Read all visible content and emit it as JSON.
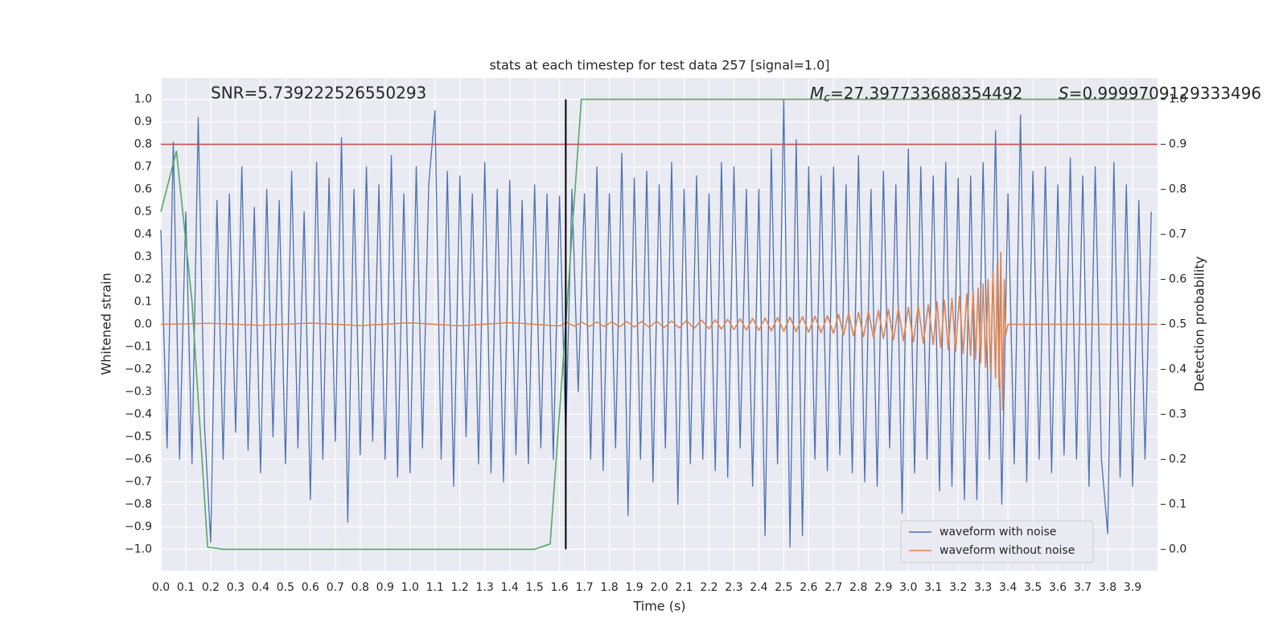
{
  "chart_data": {
    "type": "line",
    "title": "stats at each timestep for test data 257 [signal=1.0]",
    "xlabel": "Time (s)",
    "ylabel": "Whitened strain",
    "y2label": "Detection probability",
    "annotations": [
      {
        "text": "SNR=5.739222526550293"
      },
      {
        "symbol": "M",
        "subscript": "c",
        "text": "=27.397733688354492"
      },
      {
        "symbol": "S",
        "text": "=0.9999709129333496"
      }
    ],
    "xlim": [
      0,
      4.0
    ],
    "ylim": [
      -1.095,
      1.095
    ],
    "y2lim": [
      -0.0475,
      1.0475
    ],
    "grid": true,
    "legend": "lower right",
    "xticks": [
      {
        "value": 0,
        "label": "0.0"
      },
      {
        "value": 0.1,
        "label": "0.1"
      },
      {
        "value": 0.2,
        "label": "0.2"
      },
      {
        "value": 0.3,
        "label": "0.3"
      },
      {
        "value": 0.4,
        "label": "0.4"
      },
      {
        "value": 0.5,
        "label": "0.5"
      },
      {
        "value": 0.6,
        "label": "0.6"
      },
      {
        "value": 0.7,
        "label": "0.7"
      },
      {
        "value": 0.8,
        "label": "0.8"
      },
      {
        "value": 0.9,
        "label": "0.9"
      },
      {
        "value": 1,
        "label": "1.0"
      },
      {
        "value": 1.1,
        "label": "1.1"
      },
      {
        "value": 1.2,
        "label": "1.2"
      },
      {
        "value": 1.3,
        "label": "1.3"
      },
      {
        "value": 1.4,
        "label": "1.4"
      },
      {
        "value": 1.5,
        "label": "1.5"
      },
      {
        "value": 1.6,
        "label": "1.6"
      },
      {
        "value": 1.7,
        "label": "1.7"
      },
      {
        "value": 1.8,
        "label": "1.8"
      },
      {
        "value": 1.9,
        "label": "1.9"
      },
      {
        "value": 2,
        "label": "2.0"
      },
      {
        "value": 2.1,
        "label": "2.1"
      },
      {
        "value": 2.2,
        "label": "2.2"
      },
      {
        "value": 2.3,
        "label": "2.3"
      },
      {
        "value": 2.4,
        "label": "2.4"
      },
      {
        "value": 2.5,
        "label": "2.5"
      },
      {
        "value": 2.6,
        "label": "2.6"
      },
      {
        "value": 2.7,
        "label": "2.7"
      },
      {
        "value": 2.8,
        "label": "2.8"
      },
      {
        "value": 2.9,
        "label": "2.9"
      },
      {
        "value": 3,
        "label": "3.0"
      },
      {
        "value": 3.1,
        "label": "3.1"
      },
      {
        "value": 3.2,
        "label": "3.2"
      },
      {
        "value": 3.3,
        "label": "3.3"
      },
      {
        "value": 3.4,
        "label": "3.4"
      },
      {
        "value": 3.5,
        "label": "3.5"
      },
      {
        "value": 3.6,
        "label": "3.6"
      },
      {
        "value": 3.7,
        "label": "3.7"
      },
      {
        "value": 3.8,
        "label": "3.8"
      },
      {
        "value": 3.9,
        "label": "3.9"
      }
    ],
    "yticks": [
      {
        "value": -1,
        "label": "−1.0"
      },
      {
        "value": -0.9,
        "label": "−0.9"
      },
      {
        "value": -0.8,
        "label": "−0.8"
      },
      {
        "value": -0.7,
        "label": "−0.7"
      },
      {
        "value": -0.6,
        "label": "−0.6"
      },
      {
        "value": -0.5,
        "label": "−0.5"
      },
      {
        "value": -0.4,
        "label": "−0.4"
      },
      {
        "value": -0.3,
        "label": "−0.3"
      },
      {
        "value": -0.2,
        "label": "−0.2"
      },
      {
        "value": -0.1,
        "label": "−0.1"
      },
      {
        "value": 0,
        "label": "0.0"
      },
      {
        "value": 0.1,
        "label": "0.1"
      },
      {
        "value": 0.2,
        "label": "0.2"
      },
      {
        "value": 0.3,
        "label": "0.3"
      },
      {
        "value": 0.4,
        "label": "0.4"
      },
      {
        "value": 0.5,
        "label": "0.5"
      },
      {
        "value": 0.6,
        "label": "0.6"
      },
      {
        "value": 0.7,
        "label": "0.7"
      },
      {
        "value": 0.8,
        "label": "0.8"
      },
      {
        "value": 0.9,
        "label": "0.9"
      },
      {
        "value": 1,
        "label": "1.0"
      }
    ],
    "y2ticks": [
      {
        "value": 0,
        "label": "0.0"
      },
      {
        "value": 0.1,
        "label": "0.1"
      },
      {
        "value": 0.2,
        "label": "0.2"
      },
      {
        "value": 0.3,
        "label": "0.3"
      },
      {
        "value": 0.4,
        "label": "0.4"
      },
      {
        "value": 0.5,
        "label": "0.5"
      },
      {
        "value": 0.6,
        "label": "0.6"
      },
      {
        "value": 0.7,
        "label": "0.7"
      },
      {
        "value": 0.8,
        "label": "0.8"
      },
      {
        "value": 0.9,
        "label": "0.9"
      },
      {
        "value": 1,
        "label": "1.0"
      }
    ],
    "hlines": [
      {
        "y": 0.8,
        "color": "#c44e52"
      }
    ],
    "vlines": [
      {
        "x": 1.625,
        "ymin": -1,
        "ymax": 1,
        "color": "#000000"
      }
    ],
    "series": [
      {
        "name": "waveform with noise",
        "color": "#4c72b0",
        "x": [
          0,
          0.025,
          0.05,
          0.075,
          0.1,
          0.125,
          0.15,
          0.175,
          0.2,
          0.225,
          0.25,
          0.275,
          0.3,
          0.325,
          0.35,
          0.375,
          0.4,
          0.425,
          0.45,
          0.475,
          0.5,
          0.525,
          0.55,
          0.575,
          0.6,
          0.625,
          0.65,
          0.675,
          0.7,
          0.725,
          0.75,
          0.775,
          0.8,
          0.825,
          0.85,
          0.875,
          0.9,
          0.925,
          0.95,
          0.975,
          1,
          1.025,
          1.05,
          1.075,
          1.1,
          1.125,
          1.15,
          1.175,
          1.2,
          1.225,
          1.25,
          1.275,
          1.3,
          1.325,
          1.35,
          1.375,
          1.4,
          1.425,
          1.45,
          1.475,
          1.5,
          1.525,
          1.55,
          1.575,
          1.6,
          1.625,
          1.65,
          1.675,
          1.7,
          1.725,
          1.75,
          1.775,
          1.8,
          1.825,
          1.85,
          1.875,
          1.9,
          1.925,
          1.95,
          1.975,
          2,
          2.025,
          2.05,
          2.075,
          2.1,
          2.125,
          2.15,
          2.175,
          2.2,
          2.225,
          2.25,
          2.275,
          2.3,
          2.325,
          2.35,
          2.375,
          2.4,
          2.425,
          2.45,
          2.475,
          2.5,
          2.525,
          2.55,
          2.575,
          2.6,
          2.625,
          2.65,
          2.675,
          2.7,
          2.725,
          2.75,
          2.775,
          2.8,
          2.825,
          2.85,
          2.875,
          2.9,
          2.925,
          2.95,
          2.975,
          3,
          3.025,
          3.05,
          3.075,
          3.1,
          3.125,
          3.15,
          3.175,
          3.2,
          3.225,
          3.25,
          3.275,
          3.3,
          3.325,
          3.35,
          3.375,
          3.4,
          3.425,
          3.45,
          3.475,
          3.5,
          3.525,
          3.55,
          3.575,
          3.6,
          3.625,
          3.65,
          3.675,
          3.7,
          3.725,
          3.75,
          3.775,
          3.8,
          3.825,
          3.85,
          3.875,
          3.9,
          3.925,
          3.95,
          3.975
        ],
        "values": [
          0.42,
          -0.55,
          0.81,
          -0.6,
          0.5,
          -0.62,
          0.92,
          -0.45,
          -0.97,
          0.55,
          -0.6,
          0.58,
          -0.48,
          0.7,
          -0.56,
          0.52,
          -0.66,
          0.6,
          -0.5,
          0.55,
          -0.62,
          0.68,
          -0.55,
          0.5,
          -0.78,
          0.72,
          -0.6,
          0.65,
          -0.52,
          0.83,
          -0.88,
          0.6,
          -0.58,
          0.7,
          -0.52,
          0.62,
          -0.6,
          0.75,
          -0.68,
          0.58,
          -0.66,
          0.7,
          -0.55,
          0.62,
          0.95,
          -0.6,
          0.68,
          -0.72,
          0.66,
          -0.5,
          0.58,
          -0.62,
          0.72,
          -0.66,
          0.6,
          -0.7,
          0.64,
          -0.58,
          0.55,
          -0.62,
          0.62,
          -0.55,
          0.58,
          -0.6,
          0.57,
          -0.5,
          0.6,
          -0.3,
          0.58,
          -0.6,
          0.7,
          -0.65,
          0.58,
          -0.55,
          0.76,
          -0.85,
          0.65,
          -0.6,
          0.68,
          -0.7,
          0.62,
          -0.55,
          0.72,
          -0.8,
          0.6,
          -0.62,
          0.66,
          -0.6,
          0.58,
          -0.65,
          0.72,
          -0.68,
          0.7,
          -0.55,
          0.6,
          -0.72,
          0.6,
          -0.94,
          0.78,
          -0.62,
          1.0,
          -0.99,
          0.82,
          -0.94,
          0.7,
          -0.6,
          0.66,
          -0.65,
          0.7,
          -0.58,
          0.62,
          -0.66,
          0.75,
          -0.7,
          0.6,
          -0.72,
          0.68,
          -0.55,
          0.62,
          -0.84,
          0.78,
          -0.66,
          0.7,
          -0.6,
          0.66,
          -0.74,
          0.72,
          -0.72,
          0.65,
          -0.78,
          0.66,
          -0.78,
          0.72,
          -0.6,
          0.86,
          -0.8,
          0.58,
          -0.62,
          0.93,
          -0.7,
          0.68,
          -0.6,
          0.7,
          -0.66,
          0.62,
          -0.58,
          0.74,
          -0.6,
          0.66,
          -0.72,
          0.7,
          -0.6,
          -0.93,
          0.72,
          -0.68,
          0.62,
          -0.72,
          0.55,
          -0.6,
          0.5
        ]
      },
      {
        "name": "waveform without noise",
        "color": "#dd8452",
        "x": [
          0,
          0.2,
          0.4,
          0.6,
          0.8,
          1.0,
          1.2,
          1.4,
          1.6,
          1.63,
          1.66,
          1.69,
          1.72,
          1.75,
          1.78,
          1.81,
          1.84,
          1.87,
          1.9,
          1.93,
          1.96,
          1.99,
          2.02,
          2.05,
          2.08,
          2.11,
          2.14,
          2.17,
          2.2,
          2.225,
          2.25,
          2.275,
          2.3,
          2.325,
          2.35,
          2.375,
          2.4,
          2.425,
          2.45,
          2.475,
          2.5,
          2.525,
          2.55,
          2.575,
          2.6,
          2.625,
          2.65,
          2.675,
          2.7,
          2.72,
          2.74,
          2.76,
          2.78,
          2.8,
          2.82,
          2.84,
          2.86,
          2.88,
          2.9,
          2.92,
          2.94,
          2.96,
          2.98,
          3.0,
          3.02,
          3.04,
          3.06,
          3.08,
          3.1,
          3.115,
          3.13,
          3.145,
          3.16,
          3.175,
          3.19,
          3.205,
          3.22,
          3.235,
          3.25,
          3.26,
          3.27,
          3.28,
          3.29,
          3.3,
          3.31,
          3.32,
          3.33,
          3.34,
          3.35,
          3.357,
          3.364,
          3.371,
          3.378,
          3.385,
          3.39,
          3.4,
          4.0
        ],
        "values": [
          0,
          0.004,
          -0.004,
          0.005,
          -0.005,
          0.006,
          -0.006,
          0.007,
          -0.007,
          0.008,
          -0.008,
          0.009,
          -0.009,
          0.01,
          -0.01,
          0.011,
          -0.011,
          0.012,
          -0.012,
          0.013,
          -0.013,
          0.014,
          -0.014,
          0.015,
          -0.016,
          0.017,
          -0.018,
          0.019,
          -0.02,
          0.02,
          -0.021,
          0.022,
          -0.023,
          0.024,
          -0.025,
          0.026,
          -0.027,
          0.028,
          -0.029,
          0.03,
          -0.031,
          0.032,
          -0.033,
          0.034,
          -0.035,
          0.036,
          -0.037,
          0.038,
          -0.04,
          0.045,
          -0.047,
          0.049,
          -0.051,
          0.053,
          -0.055,
          0.057,
          -0.059,
          0.061,
          -0.063,
          0.066,
          -0.068,
          0.07,
          -0.073,
          0.076,
          -0.078,
          0.081,
          -0.084,
          0.087,
          -0.09,
          0.1,
          -0.104,
          0.108,
          -0.112,
          0.116,
          -0.12,
          0.125,
          -0.13,
          0.135,
          -0.14,
          0.15,
          -0.155,
          0.16,
          -0.17,
          0.18,
          -0.19,
          0.2,
          -0.21,
          0.23,
          -0.24,
          0.27,
          -0.28,
          0.32,
          -0.38,
          0.2,
          -0.05,
          0,
          0
        ]
      },
      {
        "color": "#55a868",
        "axis": "y2",
        "x": [
          0,
          0.0625,
          0.125,
          0.1875,
          0.25,
          1.5,
          1.5625,
          1.625,
          1.6875,
          3.98
        ],
        "values": [
          0.75,
          0.885,
          0.55,
          0.005,
          0,
          0,
          0.012,
          0.5,
          1,
          1
        ]
      }
    ]
  }
}
